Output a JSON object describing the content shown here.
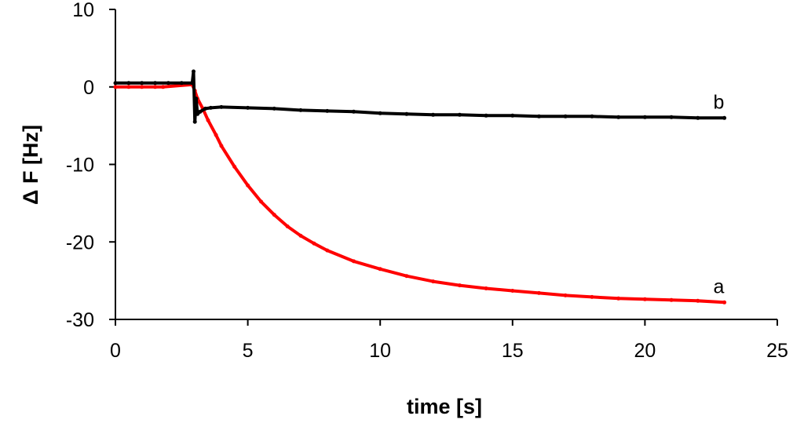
{
  "chart_data": {
    "type": "line",
    "title": "",
    "xlabel": "time [s]",
    "ylabel": "Δ F [Hz]",
    "xlim": [
      0,
      25
    ],
    "ylim": [
      -30,
      10
    ],
    "x_ticks": [
      0,
      5,
      10,
      15,
      20,
      25
    ],
    "y_ticks": [
      10,
      0,
      -10,
      -20,
      -30
    ],
    "grid": false,
    "legend": "none",
    "series": [
      {
        "label": "a",
        "color": "#ff0000",
        "x": [
          0,
          0.5,
          1,
          1.5,
          1.8,
          2.9,
          3.0,
          3.1,
          3.3,
          3.5,
          3.8,
          4,
          4.5,
          5,
          5.5,
          6,
          6.5,
          7,
          7.5,
          8,
          9,
          10,
          11,
          12,
          13,
          14,
          15,
          16,
          17,
          18,
          19,
          20,
          21,
          22,
          23
        ],
        "y": [
          0,
          0,
          0,
          0,
          0,
          0.3,
          -0.5,
          -1.5,
          -2.8,
          -4.3,
          -6.2,
          -7.6,
          -10.3,
          -12.7,
          -14.8,
          -16.5,
          -18,
          -19.2,
          -20.2,
          -21.1,
          -22.5,
          -23.5,
          -24.4,
          -25.1,
          -25.6,
          -26.0,
          -26.3,
          -26.6,
          -26.9,
          -27.1,
          -27.3,
          -27.4,
          -27.5,
          -27.6,
          -27.8
        ]
      },
      {
        "label": "b",
        "color": "#000000",
        "x": [
          0,
          0.5,
          1,
          1.5,
          2,
          2.5,
          2.9,
          2.95,
          3.0,
          3.05,
          3.1,
          3.2,
          3.4,
          3.6,
          4,
          5,
          6,
          7,
          8,
          9,
          10,
          11,
          12,
          13,
          14,
          15,
          16,
          17,
          18,
          19,
          20,
          21,
          22,
          23
        ],
        "y": [
          0.5,
          0.5,
          0.5,
          0.5,
          0.5,
          0.5,
          0.5,
          2.0,
          -4.5,
          -1.5,
          -3.5,
          -3.2,
          -2.8,
          -2.7,
          -2.6,
          -2.7,
          -2.8,
          -3.0,
          -3.1,
          -3.2,
          -3.4,
          -3.5,
          -3.6,
          -3.6,
          -3.7,
          -3.7,
          -3.8,
          -3.8,
          -3.8,
          -3.9,
          -3.9,
          -3.9,
          -4.0,
          -4.0
        ]
      }
    ]
  }
}
